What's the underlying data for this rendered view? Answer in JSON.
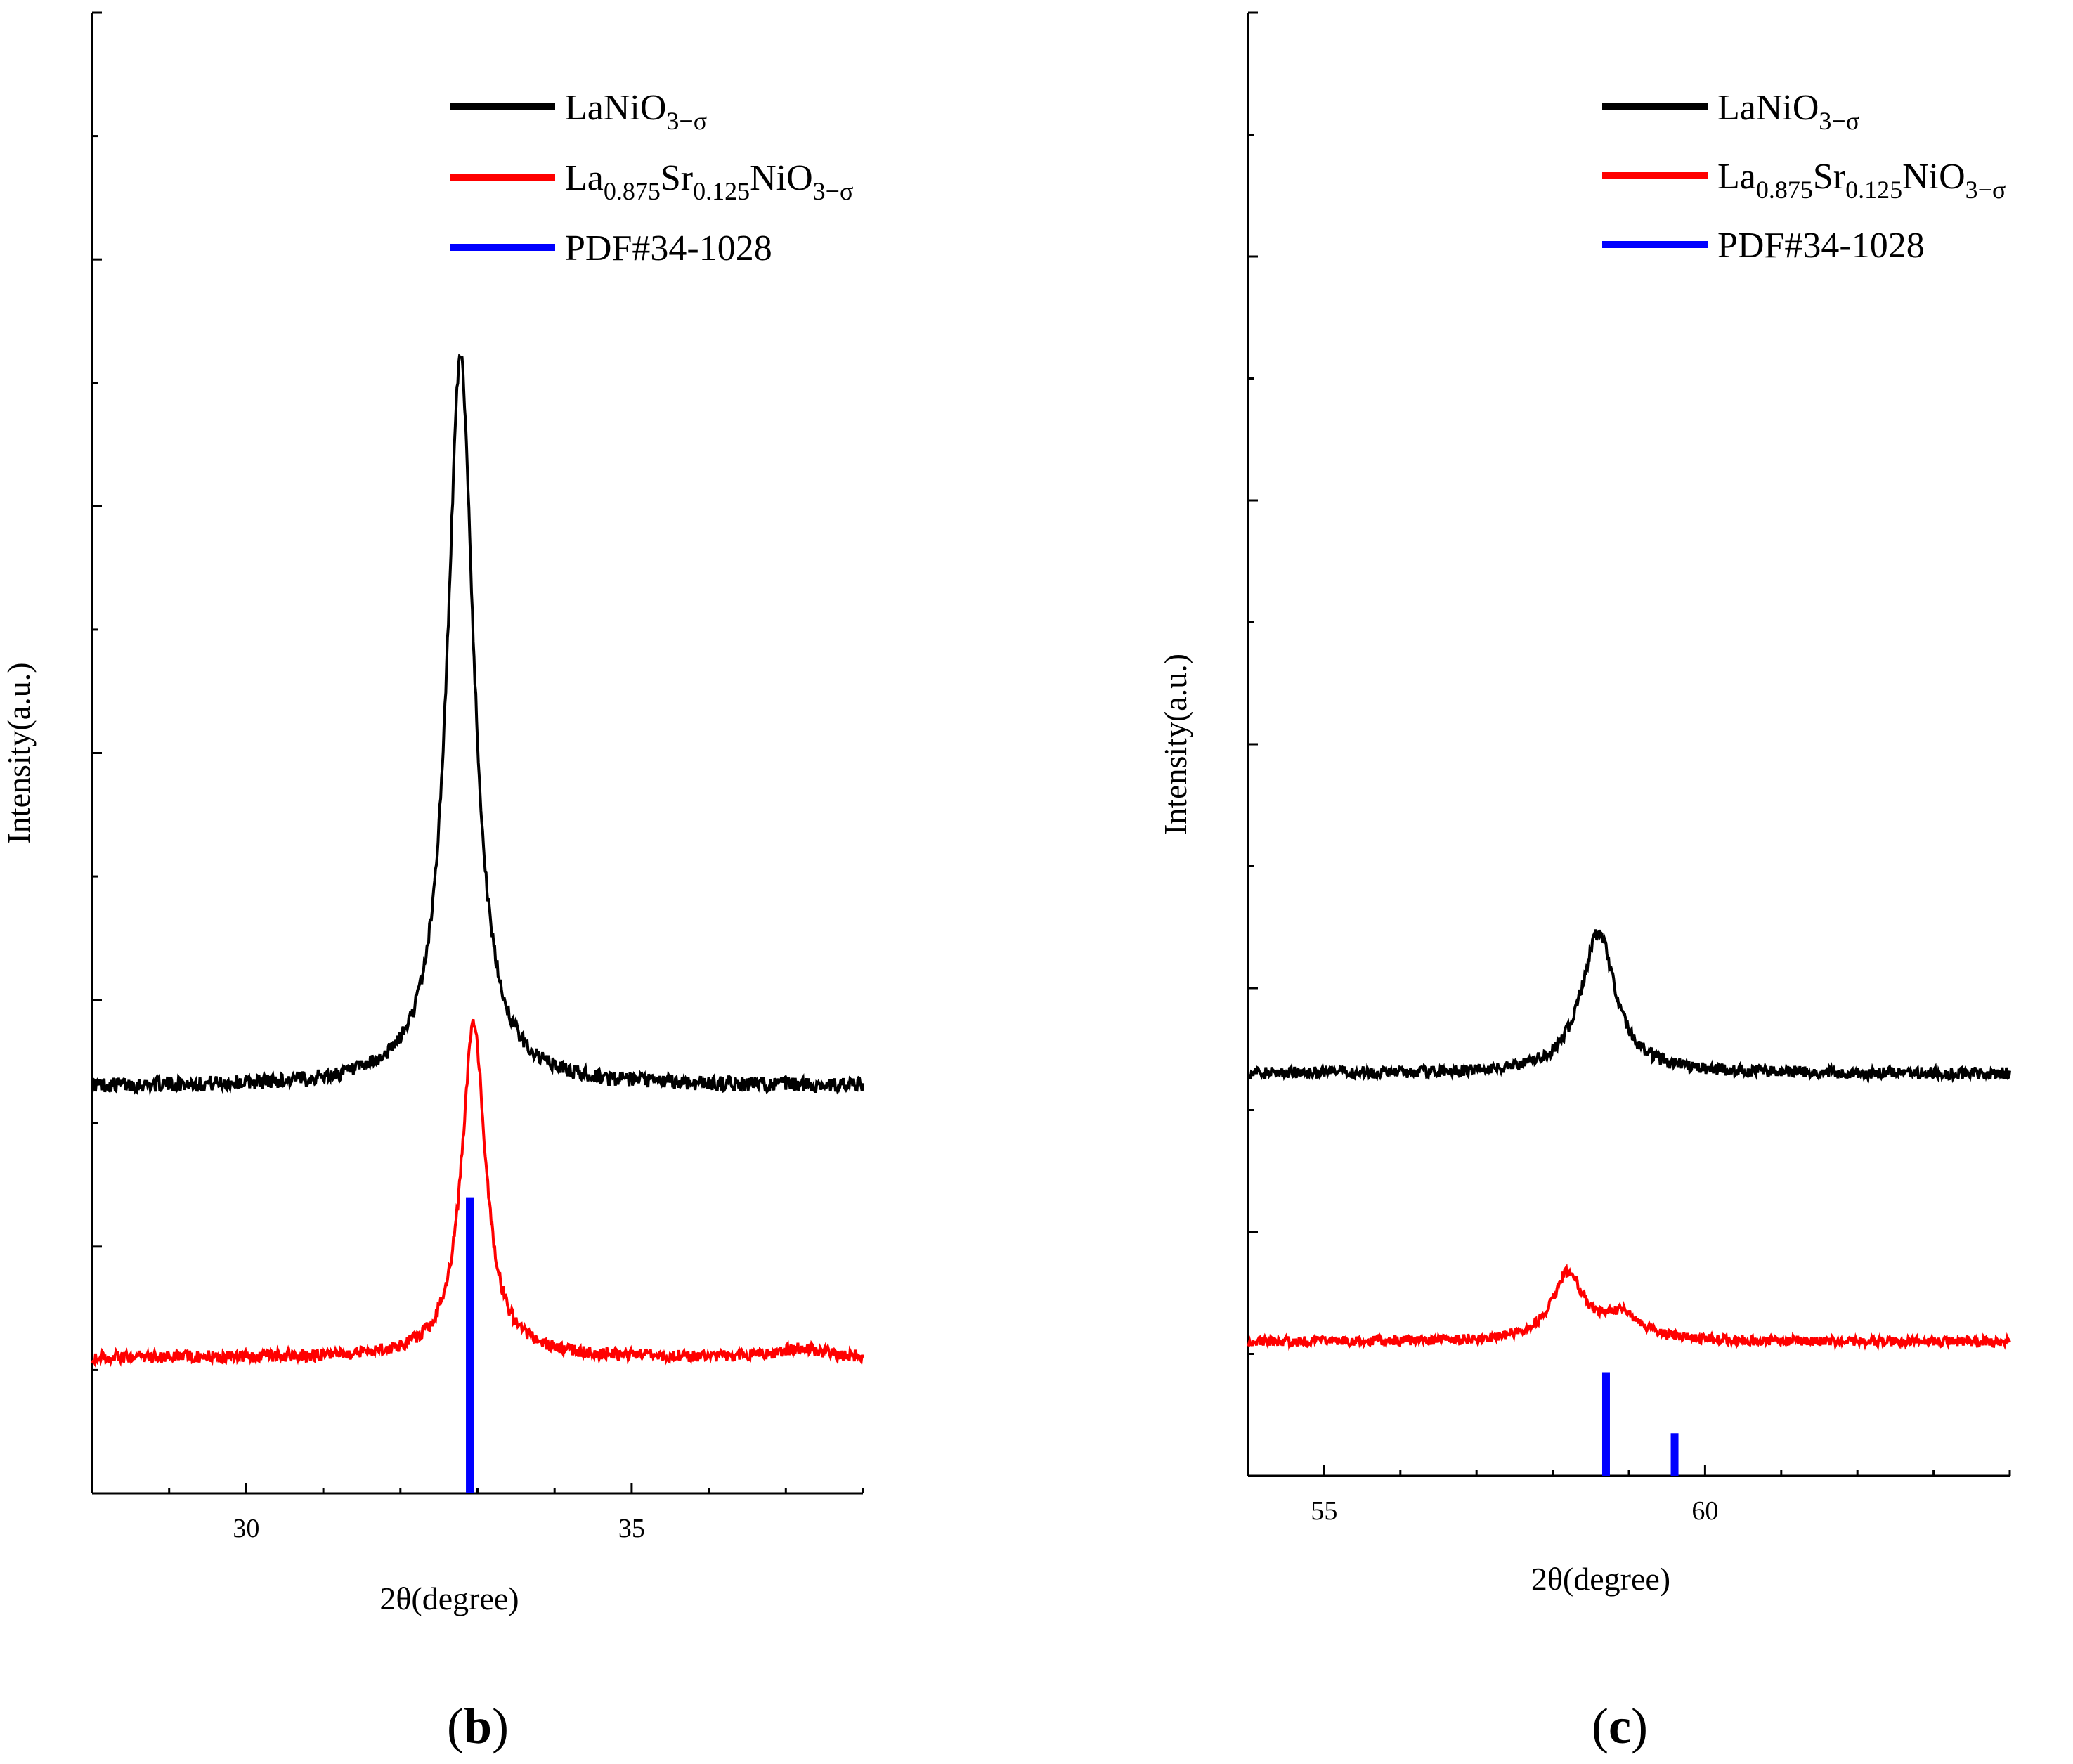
{
  "chart_data": [
    {
      "type": "line",
      "panel": "b",
      "panel_label": {
        "open": "(",
        "letter": "b",
        "close": ")"
      },
      "xlabel": "2θ(degree)",
      "ylabel": "Intensity(a.u.)",
      "xlim": [
        28,
        38
      ],
      "ylim": [
        0,
        12
      ],
      "xticks": [
        30,
        35
      ],
      "yticks": [
        2,
        4,
        6,
        8,
        10,
        12
      ],
      "y_tick_labels_shown": false,
      "legend": {
        "placement": "top-center",
        "entries": [
          {
            "name": "LaNiO3-σ",
            "parts": [
              {
                "t": "LaNiO"
              },
              {
                "t": "3−σ",
                "sub": true
              }
            ],
            "color": "#000000"
          },
          {
            "name": "La0.875Sr0.125NiO3-σ",
            "parts": [
              {
                "t": "La"
              },
              {
                "t": "0.875",
                "sub": true
              },
              {
                "t": "Sr"
              },
              {
                "t": "0.125",
                "sub": true
              },
              {
                "t": "NiO"
              },
              {
                "t": "3−σ",
                "sub": true
              }
            ],
            "color": "#ff0000"
          },
          {
            "name": "PDF#34-1028",
            "parts": [
              {
                "t": "PDF#34-1028"
              }
            ],
            "color": "#0000ff"
          }
        ]
      },
      "series": [
        {
          "name": "LaNiO3-σ",
          "color": "#000000",
          "baseline": 3.3,
          "peaks": [
            {
              "center": 32.78,
              "height": 5.9,
              "width": 0.42
            }
          ],
          "noise": 0.06
        },
        {
          "name": "La0.875Sr0.125NiO3-σ",
          "color": "#ff0000",
          "baseline": 1.1,
          "peaks": [
            {
              "center": 32.95,
              "height": 2.7,
              "width": 0.38
            },
            {
              "center": 37.2,
              "height": 0.08,
              "width": 0.6
            }
          ],
          "noise": 0.05
        },
        {
          "name": "PDF#34-1028",
          "color": "#0000ff",
          "type": "stick",
          "sticks": [
            {
              "x": 32.9,
              "y": 2.4
            }
          ]
        }
      ]
    },
    {
      "type": "line",
      "panel": "c",
      "panel_label": {
        "open": "(",
        "letter": "c",
        "close": ")"
      },
      "xlabel": "2θ(degree)",
      "ylabel": "Intensity(a.u.)",
      "xlim": [
        54,
        64
      ],
      "ylim": [
        0,
        12
      ],
      "xticks": [
        55,
        60
      ],
      "yticks": [
        2,
        4,
        6,
        8,
        10,
        12
      ],
      "y_tick_labels_shown": false,
      "legend": {
        "placement": "top-center",
        "entries": [
          {
            "name": "LaNiO3-σ",
            "parts": [
              {
                "t": "LaNiO"
              },
              {
                "t": "3−σ",
                "sub": true
              }
            ],
            "color": "#000000"
          },
          {
            "name": "La0.875Sr0.125NiO3-σ",
            "parts": [
              {
                "t": "La"
              },
              {
                "t": "0.875",
                "sub": true
              },
              {
                "t": "Sr"
              },
              {
                "t": "0.125",
                "sub": true
              },
              {
                "t": "NiO"
              },
              {
                "t": "3−σ",
                "sub": true
              }
            ],
            "color": "#ff0000"
          },
          {
            "name": "PDF#34-1028",
            "parts": [
              {
                "t": "PDF#34-1028"
              }
            ],
            "color": "#0000ff"
          }
        ]
      },
      "series": [
        {
          "name": "LaNiO3-σ",
          "color": "#000000",
          "baseline": 3.3,
          "peaks": [
            {
              "center": 58.6,
              "height": 1.15,
              "width": 0.55
            }
          ],
          "noise": 0.05
        },
        {
          "name": "La0.875Sr0.125NiO3-σ",
          "color": "#ff0000",
          "baseline": 1.1,
          "peaks": [
            {
              "center": 58.2,
              "height": 0.55,
              "width": 0.5
            },
            {
              "center": 58.9,
              "height": 0.2,
              "width": 0.6
            }
          ],
          "noise": 0.04
        },
        {
          "name": "PDF#34-1028",
          "color": "#0000ff",
          "type": "stick",
          "sticks": [
            {
              "x": 58.7,
              "y": 0.85
            },
            {
              "x": 59.6,
              "y": 0.35
            }
          ]
        }
      ]
    }
  ]
}
